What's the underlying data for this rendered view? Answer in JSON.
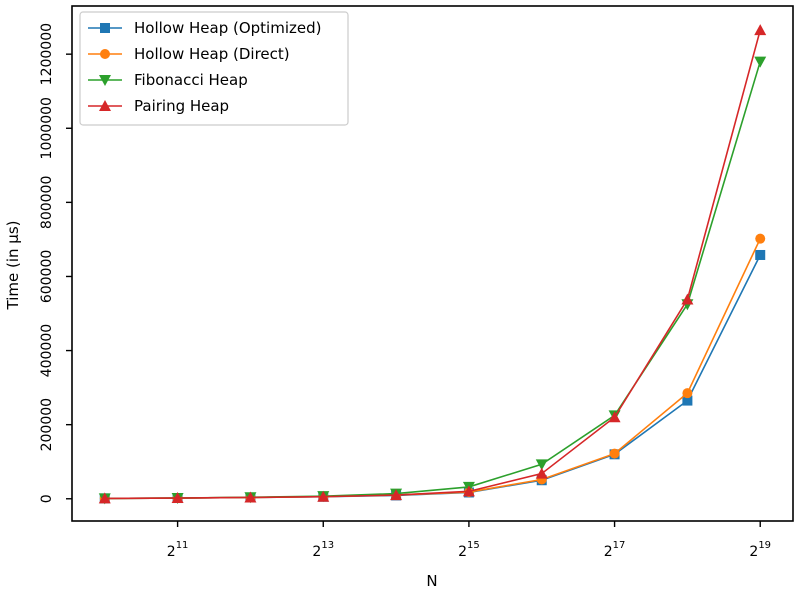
{
  "chart_data": {
    "type": "line",
    "title": "",
    "xlabel": "N",
    "ylabel": "Time (in µs)",
    "x_scale": "log2",
    "x": [
      1024,
      2048,
      4096,
      8192,
      16384,
      32768,
      65536,
      131072,
      262144,
      524288
    ],
    "x_ticks": [
      {
        "value": 2048,
        "base": "2",
        "exp": "11"
      },
      {
        "value": 8192,
        "base": "2",
        "exp": "13"
      },
      {
        "value": 32768,
        "base": "2",
        "exp": "15"
      },
      {
        "value": 131072,
        "base": "2",
        "exp": "17"
      },
      {
        "value": 524288,
        "base": "2",
        "exp": "19"
      }
    ],
    "y_ticks": [
      {
        "value": 0,
        "label": "0"
      },
      {
        "value": 200000,
        "label": "200000"
      },
      {
        "value": 400000,
        "label": "400000"
      },
      {
        "value": 600000,
        "label": "600000"
      },
      {
        "value": 800000,
        "label": "800000"
      },
      {
        "value": 1000000,
        "label": "1000000"
      },
      {
        "value": 1200000,
        "label": "1200000"
      }
    ],
    "ylim": [
      -60000,
      1330000
    ],
    "grid": false,
    "legend_position": "top-left",
    "series": [
      {
        "name": "Hollow Heap (Optimized)",
        "color": "#1f77b4",
        "marker": "square",
        "values": [
          1000,
          2000,
          3500,
          5500,
          9000,
          17000,
          50000,
          120000,
          265000,
          658000
        ]
      },
      {
        "name": "Hollow Heap (Direct)",
        "color": "#ff7f0e",
        "marker": "circle",
        "values": [
          1000,
          2000,
          3500,
          6000,
          10000,
          18000,
          52000,
          122000,
          285000,
          702000
        ]
      },
      {
        "name": "Fibonacci Heap",
        "color": "#2ca02c",
        "marker": "triangle-down",
        "values": [
          1000,
          2000,
          4000,
          7000,
          14000,
          32000,
          93000,
          225000,
          525000,
          1180000
        ]
      },
      {
        "name": "Pairing Heap",
        "color": "#d62728",
        "marker": "triangle-up",
        "values": [
          1000,
          2000,
          3500,
          5500,
          10000,
          20000,
          68000,
          220000,
          538000,
          1265000
        ]
      }
    ]
  }
}
